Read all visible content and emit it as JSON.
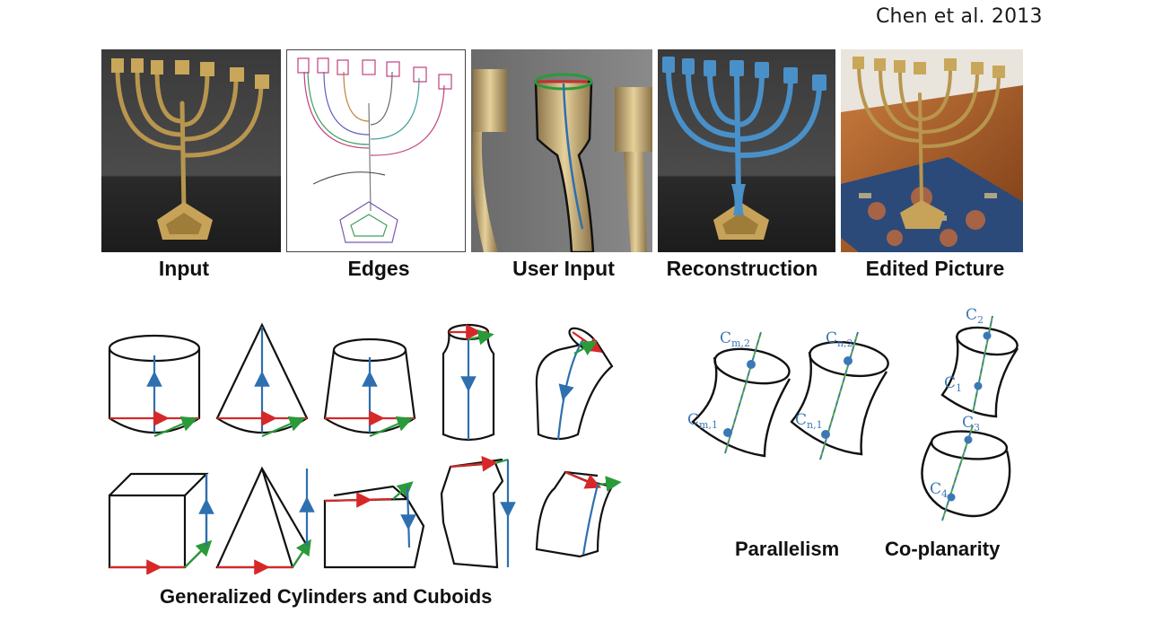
{
  "citation": "Chen et al. 2013",
  "pipeline": {
    "panels": [
      {
        "caption": "Input"
      },
      {
        "caption": "Edges"
      },
      {
        "caption": "User Input"
      },
      {
        "caption": "Reconstruction"
      },
      {
        "caption": "Edited Picture"
      }
    ]
  },
  "primitives": {
    "caption": "Generalized Cylinders and Cuboids"
  },
  "constraints": {
    "parallelism_caption": "Parallelism",
    "coplanarity_caption": "Co-planarity",
    "labels": {
      "cm2": "C",
      "cm2_sub": "m,2",
      "cm1": "C",
      "cm1_sub": "m,1",
      "cn2": "C",
      "cn2_sub": "n,2",
      "cn1": "C",
      "cn1_sub": "n,1",
      "c2": "C",
      "c2_sub": "2",
      "c1": "C",
      "c1_sub": "1",
      "c3": "C",
      "c3_sub": "3",
      "c4": "C",
      "c4_sub": "4"
    }
  },
  "colors": {
    "axis_blue": "#2e6fb0",
    "profile_red": "#d62828",
    "profile_green": "#2a9a3a",
    "reconstruction_blue": "#4a90c8",
    "label_blue": "#3b78b6",
    "brass": "#b8964e"
  }
}
